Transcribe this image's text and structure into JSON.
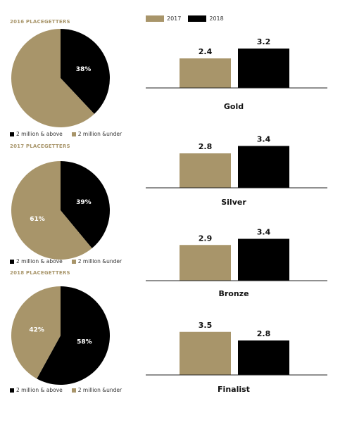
{
  "colors": {
    "y2017": "#a8956a",
    "y2018": "#000000",
    "pie_gold": "#a8956a",
    "pie_black": "#000000"
  },
  "legend_top": {
    "label_2017": "2017",
    "label_2018": "2018"
  },
  "chart_data": [
    {
      "type": "pie",
      "title": "2016 PLACEGETTERS",
      "slices": [
        {
          "name": "2 million & above",
          "value": 38,
          "label": "38%"
        },
        {
          "name": "2 million &under",
          "value": 62,
          "label": ""
        }
      ],
      "legend": [
        "2 million & above",
        "2 million &under"
      ]
    },
    {
      "type": "pie",
      "title": "2017 PLACEGETTERS",
      "slices": [
        {
          "name": "2 million & above",
          "value": 39,
          "label": "39%"
        },
        {
          "name": "2 million &under",
          "value": 61,
          "label": "61%"
        }
      ],
      "legend": [
        "2 million & above",
        "2 million &under"
      ]
    },
    {
      "type": "pie",
      "title": "2018 PLACEGETTERS",
      "slices": [
        {
          "name": "2 million & above",
          "value": 58,
          "label": "58%"
        },
        {
          "name": "2 million &under",
          "value": 42,
          "label": "42%"
        }
      ],
      "legend": [
        "2 million & above",
        "2 million &under"
      ]
    },
    {
      "type": "bar",
      "title": "Gold",
      "categories": [
        "2017",
        "2018"
      ],
      "values": [
        2.4,
        3.2
      ],
      "labels": [
        "2.4",
        "3.2"
      ]
    },
    {
      "type": "bar",
      "title": "Silver",
      "categories": [
        "2017",
        "2018"
      ],
      "values": [
        2.8,
        3.4
      ],
      "labels": [
        "2.8",
        "3.4"
      ]
    },
    {
      "type": "bar",
      "title": "Bronze",
      "categories": [
        "2017",
        "2018"
      ],
      "values": [
        2.9,
        3.4
      ],
      "labels": [
        "2.9",
        "3.4"
      ]
    },
    {
      "type": "bar",
      "title": "Finalist",
      "categories": [
        "2017",
        "2018"
      ],
      "values": [
        3.5,
        2.8
      ],
      "labels": [
        "3.5",
        "2.8"
      ]
    }
  ]
}
